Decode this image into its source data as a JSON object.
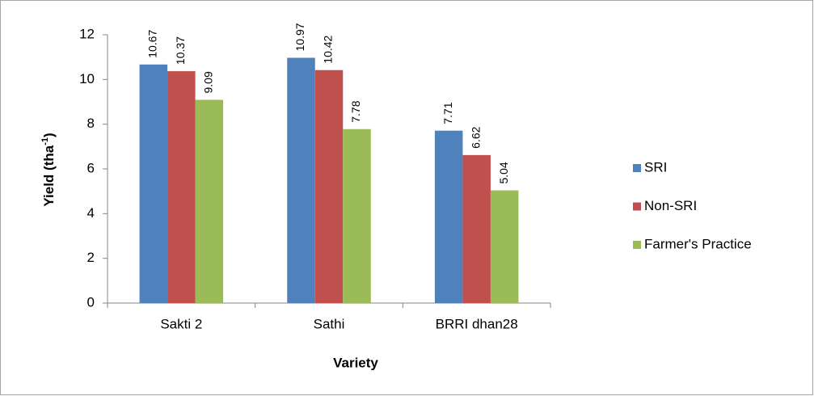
{
  "chart_data": {
    "type": "bar",
    "categories": [
      "Sakti 2",
      "Sathi",
      "BRRI dhan28"
    ],
    "series": [
      {
        "name": "SRI",
        "color": "#4f81bd",
        "values": [
          10.67,
          10.97,
          7.71
        ]
      },
      {
        "name": "Non-SRI",
        "color": "#c0504d",
        "values": [
          10.37,
          10.42,
          6.62
        ]
      },
      {
        "name": "Farmer's Practice",
        "color": "#9bbb59",
        "values": [
          9.09,
          7.78,
          5.04
        ]
      }
    ],
    "x_label": "Variety",
    "y_label": [
      "Yield (tha",
      "-1",
      ")"
    ],
    "ylim": [
      0,
      12
    ],
    "yticks": [
      0,
      2,
      4,
      6,
      8,
      10,
      12
    ],
    "grid": false,
    "legend": "right"
  }
}
